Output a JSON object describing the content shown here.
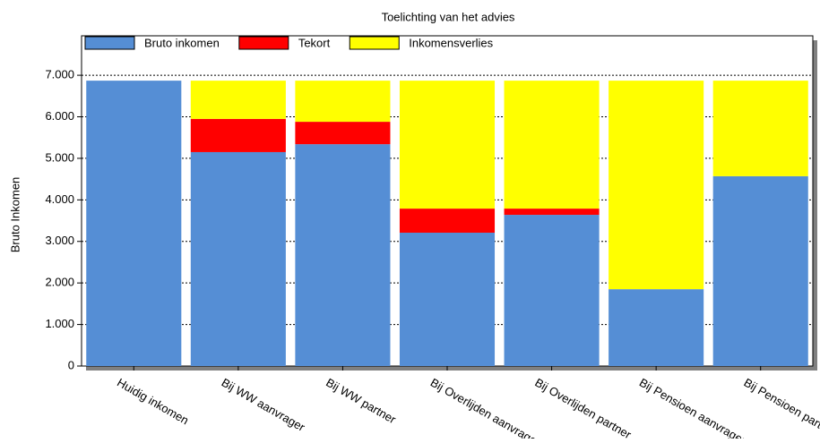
{
  "chart_data": {
    "type": "stacked-bar",
    "title": "Toelichting van het advies",
    "y_label": "Bruto Inkomen",
    "categories": [
      "Huidig inkomen",
      "Bij WW aanvrager",
      "Bij WW partner",
      "Bij Overlijden aanvrager",
      "Bij Overlijden partner",
      "Bij Pensioen aanvrager",
      "Bij Pensioen partner"
    ],
    "series": [
      {
        "name": "Bruto inkomen",
        "color": "#558ed5",
        "values": [
          6870,
          5150,
          5340,
          3210,
          3640,
          1850,
          4570
        ]
      },
      {
        "name": "Tekort",
        "color": "#ff0000",
        "values": [
          0,
          800,
          540,
          580,
          150,
          0,
          0
        ]
      },
      {
        "name": "Inkomensverlies",
        "color": "#ffff00",
        "values": [
          0,
          920,
          990,
          3080,
          3080,
          5020,
          2300
        ]
      }
    ],
    "ylim": [
      0,
      7950
    ],
    "yticks": [
      0,
      {
        "value": 1000,
        "label": "1.000"
      },
      {
        "value": 2000,
        "label": "2.000"
      },
      {
        "value": 3000,
        "label": "3.000"
      },
      {
        "value": 4000,
        "label": "4.000"
      },
      {
        "value": 5000,
        "label": "5.000"
      },
      {
        "value": 6000,
        "label": "6.000"
      },
      {
        "value": 7000,
        "label": "7.000"
      }
    ],
    "grid": true
  }
}
